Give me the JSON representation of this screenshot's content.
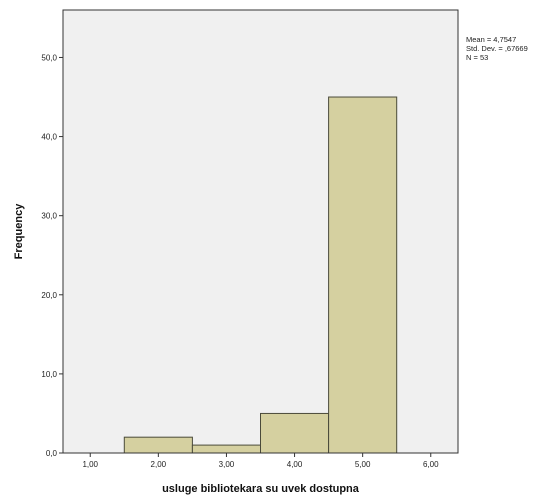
{
  "chart_data": {
    "type": "bar",
    "xlabel": "usluge bibliotekara su uvek dostupna",
    "ylabel": "Frequency",
    "x_ticks": [
      1,
      2,
      3,
      4,
      5,
      6
    ],
    "x_tick_labels": [
      "1,00",
      "2,00",
      "3,00",
      "4,00",
      "5,00",
      "6,00"
    ],
    "y_ticks": [
      0,
      10,
      20,
      30,
      40,
      50
    ],
    "y_tick_labels": [
      "0,0",
      "10,0",
      "20,0",
      "30,0",
      "40,0",
      "50,0"
    ],
    "xlim": [
      0.6,
      6.4
    ],
    "ylim": [
      0,
      56
    ],
    "bins": [
      {
        "x0": 1.5,
        "x1": 2.5,
        "value": 2
      },
      {
        "x0": 2.5,
        "x1": 3.5,
        "value": 1
      },
      {
        "x0": 3.5,
        "x1": 4.5,
        "value": 5
      },
      {
        "x0": 4.5,
        "x1": 5.5,
        "value": 45
      }
    ],
    "stats": {
      "mean": "Mean = 4,7547",
      "std_dev": "Std. Dev. = ,67669",
      "n": "N = 53"
    },
    "grid": false,
    "colors": {
      "bar_fill": "#d5d0a0",
      "bar_stroke": "#4a4a3a",
      "plot_background": "#f0f0f0",
      "axis": "#333333"
    }
  }
}
